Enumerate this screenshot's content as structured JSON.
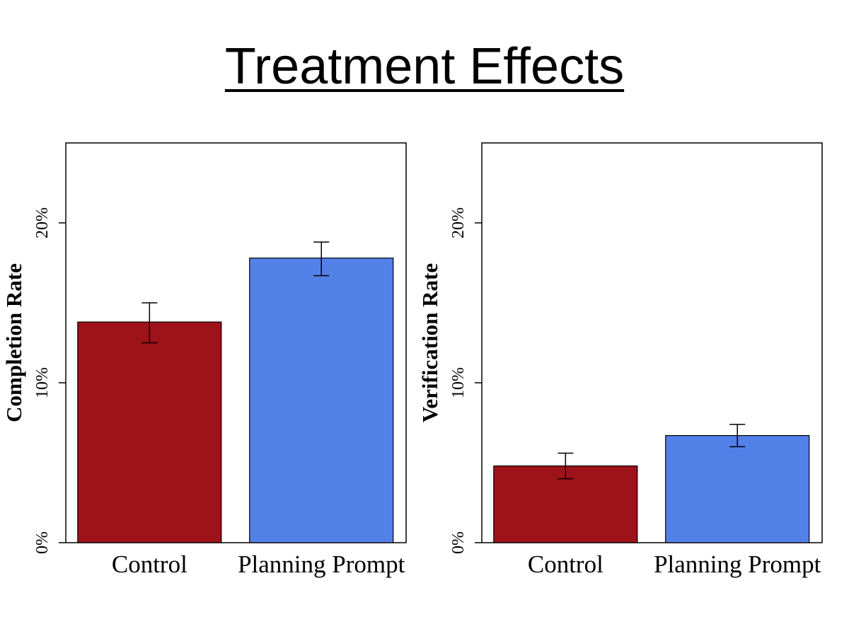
{
  "title": "Treatment Effects",
  "colors": {
    "control": "#9e1219",
    "planning": "#5381e8",
    "axis": "#000000"
  },
  "chart_data": [
    {
      "type": "bar",
      "ylabel": "Completion Rate",
      "categories": [
        "Control",
        "Planning Prompt"
      ],
      "values": [
        13.8,
        17.8
      ],
      "error_low": [
        12.5,
        16.7
      ],
      "error_high": [
        15.0,
        18.8
      ],
      "ylim": [
        0,
        25
      ],
      "yticks": [
        0,
        10,
        20
      ],
      "ytick_labels": [
        "0%",
        "10%",
        "20%"
      ],
      "grid": false
    },
    {
      "type": "bar",
      "ylabel": "Verification Rate",
      "categories": [
        "Control",
        "Planning Prompt"
      ],
      "values": [
        4.8,
        6.7
      ],
      "error_low": [
        4.0,
        6.0
      ],
      "error_high": [
        5.6,
        7.4
      ],
      "ylim": [
        0,
        25
      ],
      "yticks": [
        0,
        10,
        20
      ],
      "ytick_labels": [
        "0%",
        "10%",
        "20%"
      ],
      "grid": false
    }
  ]
}
